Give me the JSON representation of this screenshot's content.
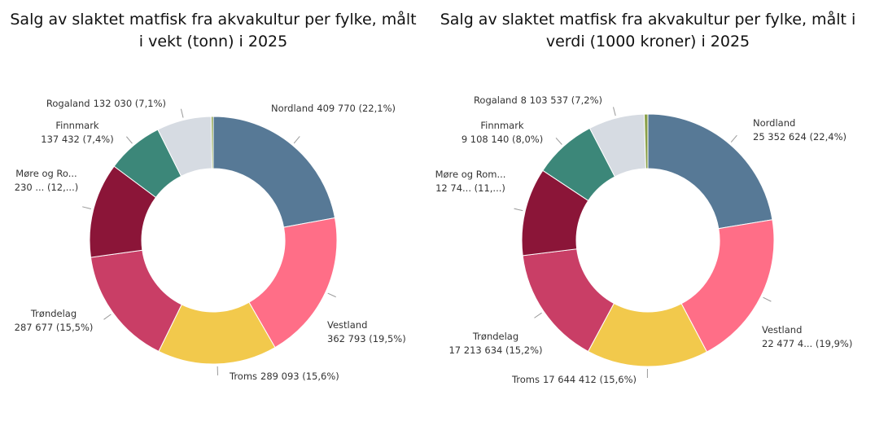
{
  "chart_data": [
    {
      "type": "donut",
      "title": [
        "Salg av slaktet matfisk fra akvakultur per fylke, målt",
        "i vekt (tonn) i 2025"
      ],
      "categories": [
        "Nordland",
        "Vestland",
        "Troms",
        "Trøndelag",
        "Møre og Ro...",
        "Finnmark",
        "Rogaland",
        null
      ],
      "values": [
        409770,
        362793,
        289093,
        287677,
        230000,
        137432,
        132030,
        5000
      ],
      "value_labels": [
        "409 770 (22,1%)",
        "362 793 (19,5%)",
        "289 093 (15,6%)",
        "287 677 (15,5%)",
        "230 ... (12,...)",
        "137 432 (7,4%)",
        "132 030 (7,1%)",
        null
      ],
      "colors": [
        "#577996",
        "#ff6e87",
        "#f2c94c",
        "#c93e66",
        "#8b1538",
        "#3c8779",
        "#d6dbe2",
        "#8aa04a"
      ]
    },
    {
      "type": "donut",
      "title": [
        "Salg av slaktet matfisk fra akvakultur per fylke, målt i",
        "verdi (1000 kroner) i 2025"
      ],
      "categories": [
        "Nordland",
        "Vestland",
        "Troms",
        "Trøndelag",
        "Møre og Rom...",
        "Finnmark",
        "Rogaland",
        null
      ],
      "values": [
        25352624,
        22477400,
        17644412,
        17213634,
        12745000,
        9108140,
        8103537,
        530000
      ],
      "value_labels": [
        "25 352 624 (22,4%)",
        "22 477 4... (19,9%)",
        "17 644 412 (15,6%)",
        "17 213 634 (15,2%)",
        "12 74... (11,...)",
        "9 108 140 (8,0%)",
        "8 103 537 (7,2%)",
        null
      ],
      "colors": [
        "#577996",
        "#ff6e87",
        "#f2c94c",
        "#c93e66",
        "#8b1538",
        "#3c8779",
        "#d6dbe2",
        "#8aa04a"
      ]
    }
  ]
}
